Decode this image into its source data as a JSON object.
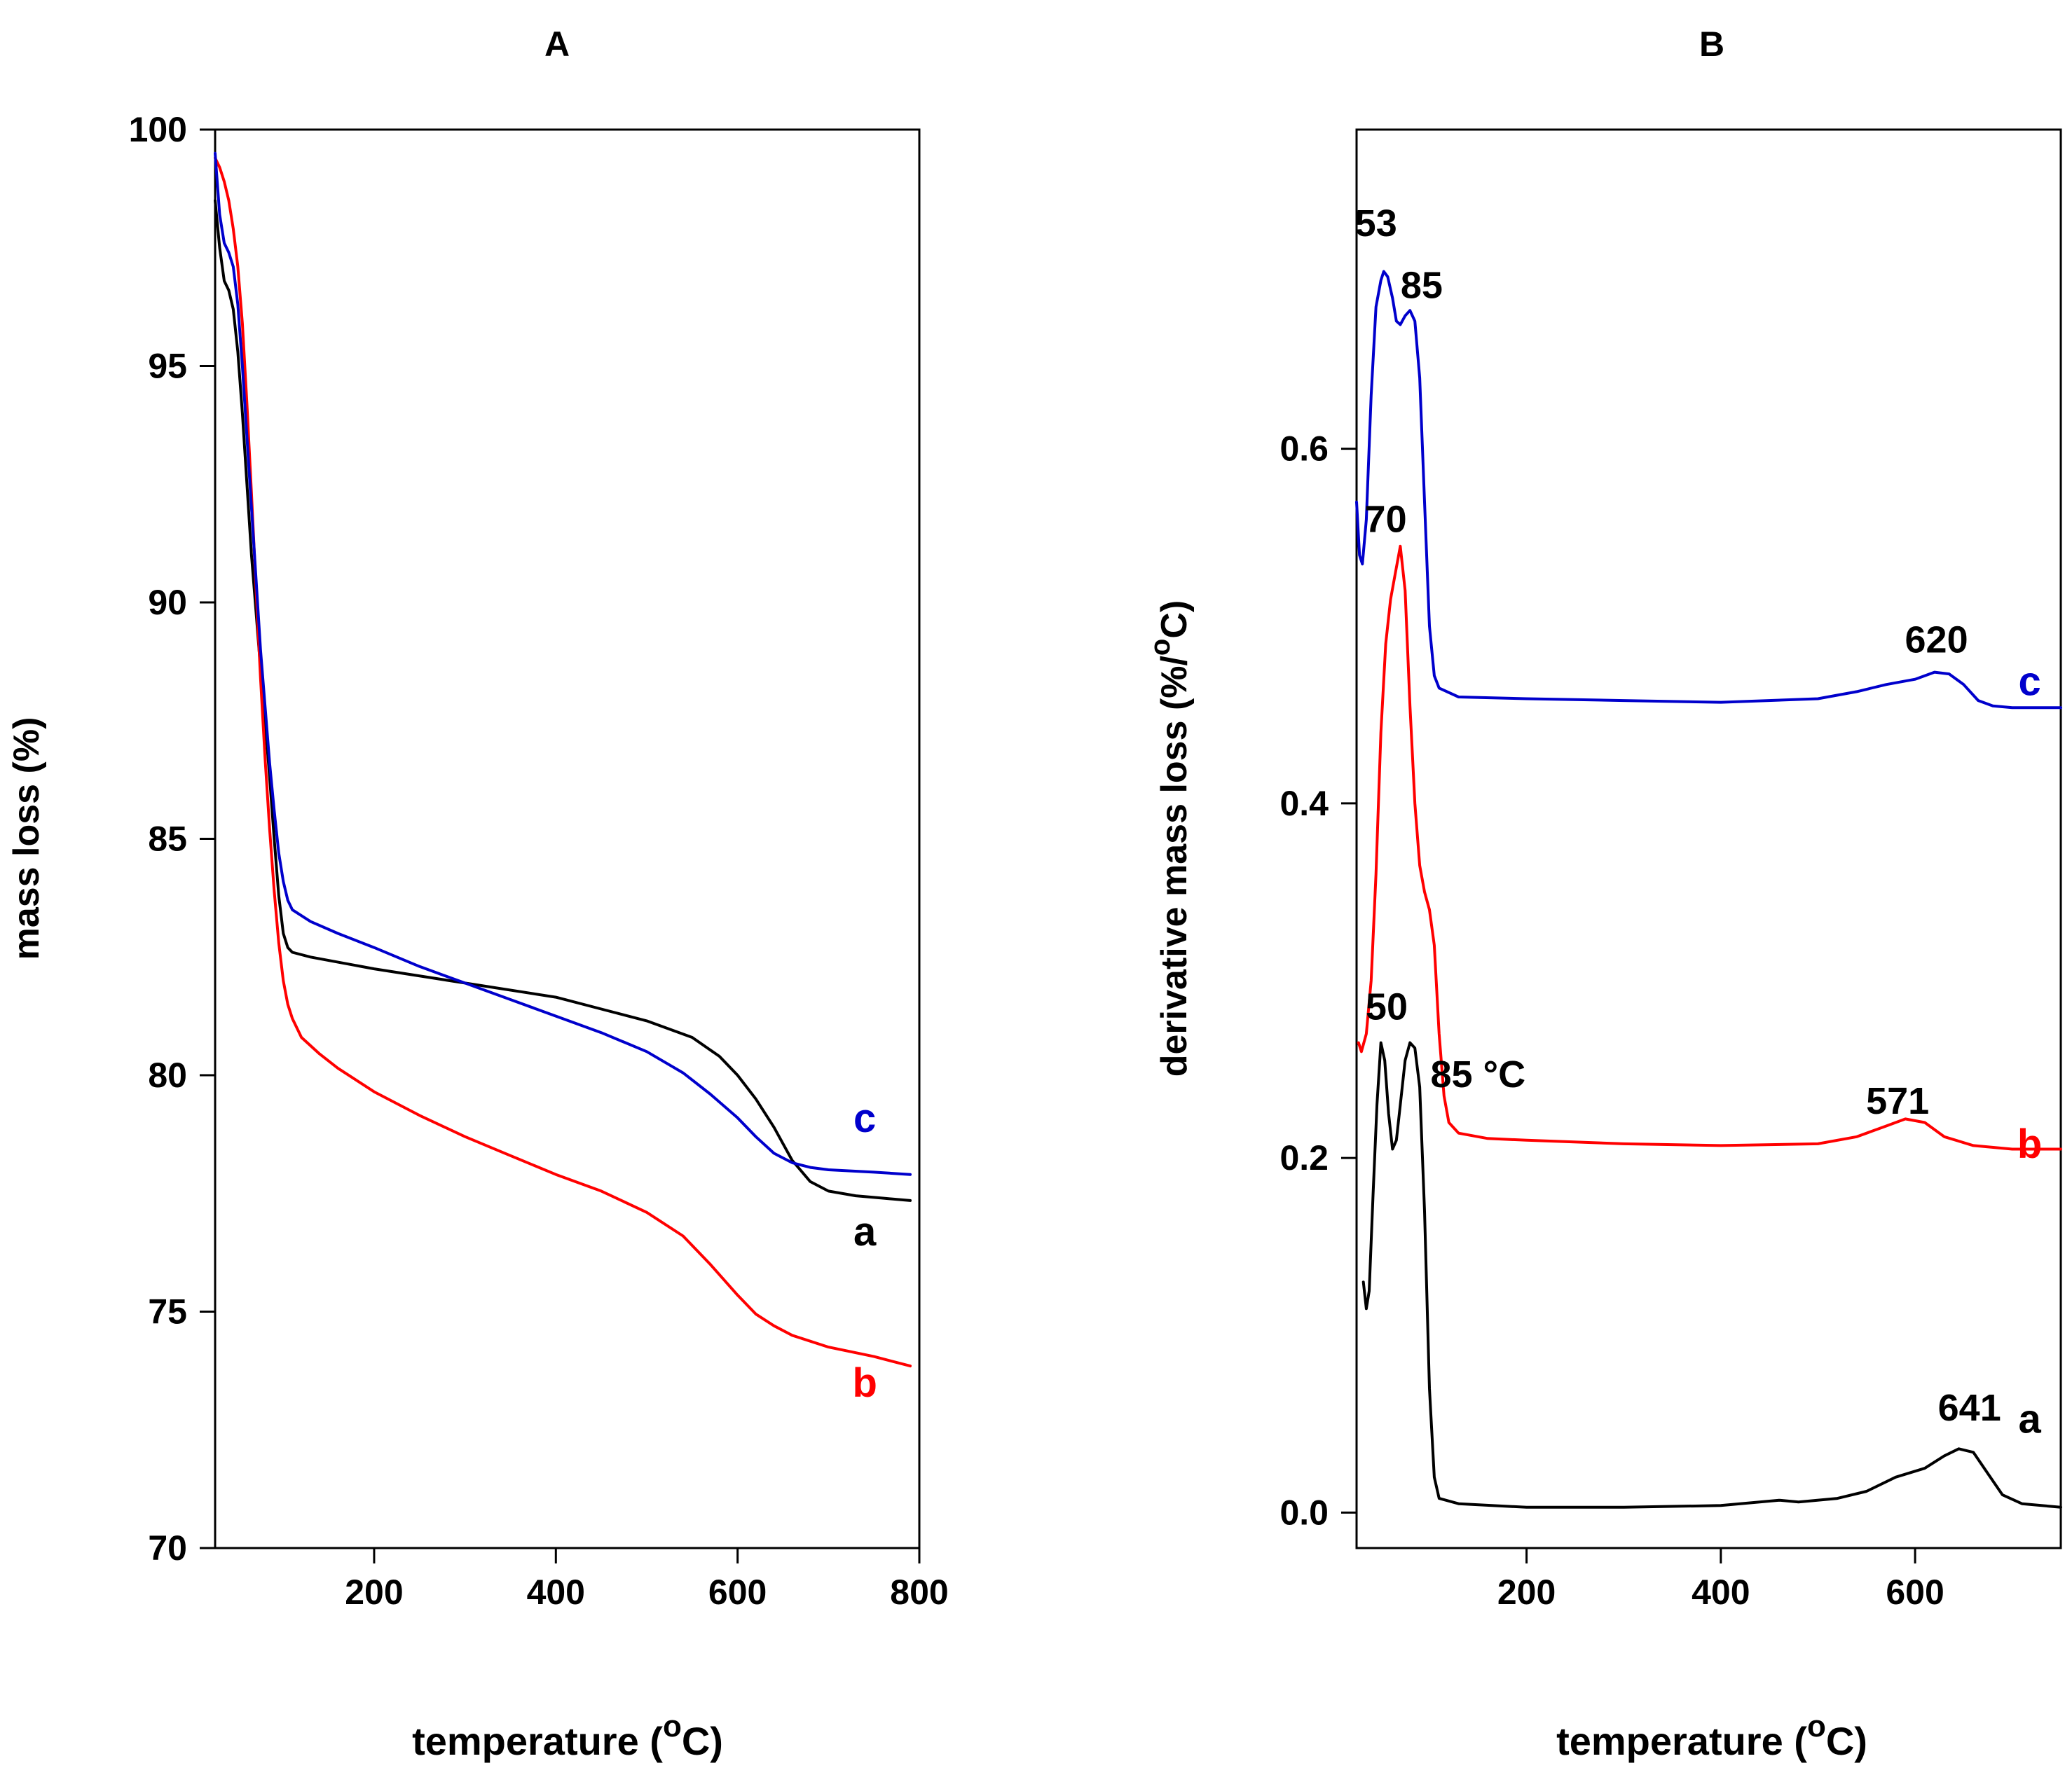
{
  "chart_data": [
    {
      "panel": "A",
      "type": "line",
      "title": "A",
      "xlabel": "temperature",
      "xlabel_unit": "(oC)",
      "ylabel": "mass loss (%)",
      "xlim": [
        25,
        800
      ],
      "ylim": [
        70,
        100
      ],
      "xticks": [
        200,
        400,
        600,
        800
      ],
      "xtick_labels": [
        "200",
        "400",
        "600",
        "800"
      ],
      "yticks": [
        70,
        75,
        80,
        85,
        90,
        95,
        100
      ],
      "ytick_labels": [
        "70",
        "75",
        "80",
        "85",
        "90",
        "95",
        "100"
      ],
      "grid": false,
      "legend": "none",
      "series": [
        {
          "name": "a",
          "color": "#000000",
          "points": [
            [
              25,
              98.5
            ],
            [
              30,
              97.5
            ],
            [
              35,
              96.8
            ],
            [
              40,
              96.6
            ],
            [
              45,
              96.2
            ],
            [
              50,
              95.3
            ],
            [
              55,
              94.0
            ],
            [
              60,
              92.5
            ],
            [
              65,
              91.0
            ],
            [
              70,
              89.8
            ],
            [
              75,
              88.6
            ],
            [
              80,
              87.5
            ],
            [
              85,
              86.3
            ],
            [
              90,
              85.0
            ],
            [
              95,
              83.8
            ],
            [
              100,
              83.0
            ],
            [
              105,
              82.7
            ],
            [
              110,
              82.6
            ],
            [
              130,
              82.5
            ],
            [
              200,
              82.25
            ],
            [
              300,
              81.95
            ],
            [
              400,
              81.65
            ],
            [
              450,
              81.4
            ],
            [
              500,
              81.15
            ],
            [
              550,
              80.8
            ],
            [
              580,
              80.4
            ],
            [
              600,
              80.0
            ],
            [
              620,
              79.5
            ],
            [
              640,
              78.9
            ],
            [
              660,
              78.2
            ],
            [
              680,
              77.75
            ],
            [
              700,
              77.55
            ],
            [
              730,
              77.45
            ],
            [
              760,
              77.4
            ],
            [
              790,
              77.35
            ]
          ]
        },
        {
          "name": "b",
          "color": "#ff0000",
          "points": [
            [
              25,
              99.4
            ],
            [
              30,
              99.2
            ],
            [
              35,
              98.9
            ],
            [
              40,
              98.5
            ],
            [
              45,
              97.9
            ],
            [
              50,
              97.1
            ],
            [
              55,
              95.9
            ],
            [
              60,
              94.2
            ],
            [
              65,
              92.3
            ],
            [
              70,
              90.3
            ],
            [
              75,
              88.4
            ],
            [
              80,
              86.7
            ],
            [
              85,
              85.2
            ],
            [
              90,
              83.9
            ],
            [
              95,
              82.8
            ],
            [
              100,
              82.0
            ],
            [
              105,
              81.5
            ],
            [
              110,
              81.2
            ],
            [
              120,
              80.8
            ],
            [
              140,
              80.45
            ],
            [
              160,
              80.15
            ],
            [
              200,
              79.65
            ],
            [
              250,
              79.15
            ],
            [
              300,
              78.7
            ],
            [
              350,
              78.3
            ],
            [
              400,
              77.9
            ],
            [
              450,
              77.55
            ],
            [
              500,
              77.1
            ],
            [
              540,
              76.6
            ],
            [
              570,
              76.0
            ],
            [
              600,
              75.35
            ],
            [
              620,
              74.95
            ],
            [
              640,
              74.7
            ],
            [
              660,
              74.5
            ],
            [
              700,
              74.25
            ],
            [
              750,
              74.05
            ],
            [
              790,
              73.85
            ]
          ]
        },
        {
          "name": "c",
          "color": "#0000cc",
          "points": [
            [
              25,
              99.5
            ],
            [
              30,
              98.2
            ],
            [
              35,
              97.6
            ],
            [
              40,
              97.4
            ],
            [
              45,
              97.1
            ],
            [
              50,
              96.3
            ],
            [
              55,
              95.0
            ],
            [
              60,
              93.5
            ],
            [
              65,
              92.0
            ],
            [
              70,
              90.5
            ],
            [
              75,
              89.0
            ],
            [
              80,
              87.8
            ],
            [
              85,
              86.6
            ],
            [
              90,
              85.6
            ],
            [
              95,
              84.7
            ],
            [
              100,
              84.1
            ],
            [
              105,
              83.7
            ],
            [
              110,
              83.5
            ],
            [
              130,
              83.25
            ],
            [
              160,
              83.0
            ],
            [
              200,
              82.7
            ],
            [
              250,
              82.3
            ],
            [
              300,
              81.95
            ],
            [
              350,
              81.6
            ],
            [
              400,
              81.25
            ],
            [
              450,
              80.9
            ],
            [
              500,
              80.5
            ],
            [
              540,
              80.05
            ],
            [
              570,
              79.6
            ],
            [
              600,
              79.1
            ],
            [
              620,
              78.7
            ],
            [
              640,
              78.35
            ],
            [
              660,
              78.15
            ],
            [
              680,
              78.05
            ],
            [
              700,
              78.0
            ],
            [
              750,
              77.95
            ],
            [
              790,
              77.9
            ]
          ]
        }
      ],
      "annotations": [
        {
          "text": "c",
          "x": 740,
          "y": 78.8,
          "color": "#0000cc"
        },
        {
          "text": "a",
          "x": 740,
          "y": 76.4,
          "color": "#000000"
        },
        {
          "text": "b",
          "x": 740,
          "y": 73.2,
          "color": "#ff0000"
        }
      ]
    },
    {
      "panel": "B",
      "type": "line",
      "title": "B",
      "xlabel": "temperature",
      "xlabel_unit": "(oC)",
      "ylabel": "derivative mass loss (%/oC)",
      "xlim": [
        25,
        750
      ],
      "ylim": [
        -0.02,
        0.78
      ],
      "xticks": [
        200,
        400,
        600
      ],
      "xtick_labels": [
        "200",
        "400",
        "600"
      ],
      "yticks": [
        0.0,
        0.2,
        0.4,
        0.6
      ],
      "ytick_labels": [
        "0.0",
        "0.2",
        "0.4",
        "0.6"
      ],
      "grid": false,
      "legend": "none",
      "series": [
        {
          "name": "a",
          "color": "#000000",
          "points": [
            [
              32,
              0.13
            ],
            [
              35,
              0.115
            ],
            [
              38,
              0.125
            ],
            [
              42,
              0.18
            ],
            [
              46,
              0.23
            ],
            [
              50,
              0.265
            ],
            [
              54,
              0.255
            ],
            [
              58,
              0.225
            ],
            [
              62,
              0.205
            ],
            [
              66,
              0.21
            ],
            [
              70,
              0.23
            ],
            [
              75,
              0.255
            ],
            [
              80,
              0.265
            ],
            [
              85,
              0.262
            ],
            [
              90,
              0.24
            ],
            [
              95,
              0.17
            ],
            [
              100,
              0.07
            ],
            [
              105,
              0.02
            ],
            [
              110,
              0.008
            ],
            [
              130,
              0.005
            ],
            [
              200,
              0.003
            ],
            [
              300,
              0.003
            ],
            [
              400,
              0.004
            ],
            [
              440,
              0.006
            ],
            [
              460,
              0.007
            ],
            [
              480,
              0.006
            ],
            [
              520,
              0.008
            ],
            [
              550,
              0.012
            ],
            [
              580,
              0.02
            ],
            [
              610,
              0.025
            ],
            [
              630,
              0.032
            ],
            [
              645,
              0.036
            ],
            [
              660,
              0.034
            ],
            [
              675,
              0.022
            ],
            [
              690,
              0.01
            ],
            [
              710,
              0.005
            ],
            [
              750,
              0.003
            ]
          ]
        },
        {
          "name": "b",
          "color": "#ff0000",
          "points": [
            [
              27,
              0.265
            ],
            [
              30,
              0.26
            ],
            [
              35,
              0.27
            ],
            [
              40,
              0.3
            ],
            [
              45,
              0.36
            ],
            [
              50,
              0.44
            ],
            [
              55,
              0.49
            ],
            [
              60,
              0.515
            ],
            [
              65,
              0.53
            ],
            [
              70,
              0.545
            ],
            [
              75,
              0.52
            ],
            [
              80,
              0.455
            ],
            [
              85,
              0.4
            ],
            [
              90,
              0.365
            ],
            [
              95,
              0.35
            ],
            [
              100,
              0.34
            ],
            [
              105,
              0.32
            ],
            [
              110,
              0.27
            ],
            [
              115,
              0.235
            ],
            [
              120,
              0.22
            ],
            [
              130,
              0.214
            ],
            [
              160,
              0.211
            ],
            [
              200,
              0.21
            ],
            [
              300,
              0.208
            ],
            [
              400,
              0.207
            ],
            [
              500,
              0.208
            ],
            [
              540,
              0.212
            ],
            [
              570,
              0.218
            ],
            [
              590,
              0.222
            ],
            [
              610,
              0.22
            ],
            [
              630,
              0.212
            ],
            [
              660,
              0.207
            ],
            [
              700,
              0.205
            ],
            [
              750,
              0.205
            ]
          ]
        },
        {
          "name": "c",
          "color": "#0000cc",
          "points": [
            [
              25,
              0.57
            ],
            [
              28,
              0.54
            ],
            [
              31,
              0.535
            ],
            [
              35,
              0.56
            ],
            [
              40,
              0.63
            ],
            [
              45,
              0.68
            ],
            [
              50,
              0.695
            ],
            [
              53,
              0.7
            ],
            [
              57,
              0.697
            ],
            [
              62,
              0.685
            ],
            [
              66,
              0.672
            ],
            [
              70,
              0.67
            ],
            [
              75,
              0.675
            ],
            [
              80,
              0.678
            ],
            [
              85,
              0.672
            ],
            [
              90,
              0.64
            ],
            [
              95,
              0.57
            ],
            [
              100,
              0.5
            ],
            [
              105,
              0.472
            ],
            [
              110,
              0.465
            ],
            [
              130,
              0.46
            ],
            [
              200,
              0.459
            ],
            [
              300,
              0.458
            ],
            [
              400,
              0.457
            ],
            [
              500,
              0.459
            ],
            [
              540,
              0.463
            ],
            [
              570,
              0.467
            ],
            [
              600,
              0.47
            ],
            [
              620,
              0.474
            ],
            [
              635,
              0.473
            ],
            [
              650,
              0.467
            ],
            [
              665,
              0.458
            ],
            [
              680,
              0.455
            ],
            [
              700,
              0.454
            ],
            [
              750,
              0.454
            ]
          ]
        }
      ],
      "annotations": [
        {
          "text": "53",
          "x": 45,
          "y": 0.72,
          "color": "#000000"
        },
        {
          "text": "85",
          "x": 92,
          "y": 0.685,
          "color": "#000000"
        },
        {
          "text": "70",
          "x": 55,
          "y": 0.553,
          "color": "#000000"
        },
        {
          "text": "620",
          "x": 622,
          "y": 0.485,
          "color": "#000000"
        },
        {
          "text": "c",
          "x": 718,
          "y": 0.461,
          "color": "#0000cc"
        },
        {
          "text": "50",
          "x": 56,
          "y": 0.278,
          "color": "#000000"
        },
        {
          "text": "85 °C",
          "x": 150,
          "y": 0.24,
          "color": "#000000"
        },
        {
          "text": "571",
          "x": 582,
          "y": 0.225,
          "color": "#000000"
        },
        {
          "text": "b",
          "x": 718,
          "y": 0.2,
          "color": "#ff0000"
        },
        {
          "text": "641",
          "x": 656,
          "y": 0.052,
          "color": "#000000"
        },
        {
          "text": "a",
          "x": 718,
          "y": 0.045,
          "color": "#000000"
        }
      ]
    }
  ]
}
